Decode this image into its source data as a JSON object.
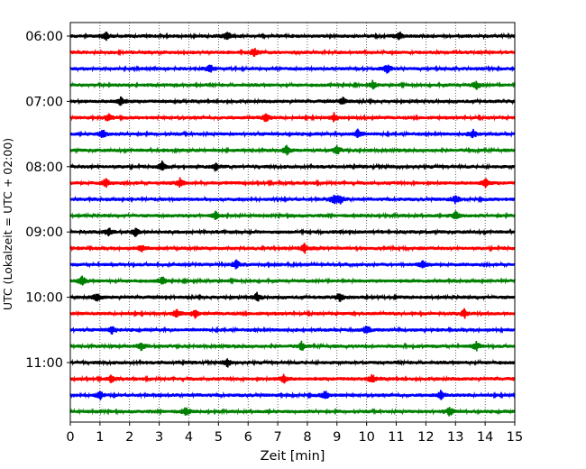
{
  "chart_data": {
    "type": "line",
    "title": "",
    "xlabel": "Zeit  [min]",
    "ylabel": "UTC (Lokalzeit = UTC + 02:00)",
    "xlim": [
      0,
      15
    ],
    "x_ticks": [
      "0",
      "1",
      "2",
      "3",
      "4",
      "5",
      "6",
      "7",
      "8",
      "9",
      "10",
      "11",
      "12",
      "13",
      "14",
      "15"
    ],
    "y_tick_labels": [
      "06:00",
      "07:00",
      "08:00",
      "09:00",
      "10:00",
      "11:00"
    ],
    "grid": "vertical dotted lines at each minute",
    "trace_interval_minutes": 15,
    "colors_cycle": [
      "#000000",
      "#ff0000",
      "#0000ff",
      "#008000"
    ],
    "traces": [
      {
        "start": "06:00",
        "color": "#000000",
        "events": [
          1.2,
          5.3,
          11.1
        ]
      },
      {
        "start": "06:15",
        "color": "#ff0000",
        "events": [
          6.2
        ]
      },
      {
        "start": "06:30",
        "color": "#0000ff",
        "events": [
          4.7,
          10.7
        ]
      },
      {
        "start": "06:45",
        "color": "#008000",
        "events": [
          10.2,
          13.7
        ]
      },
      {
        "start": "07:00",
        "color": "#000000",
        "events": [
          1.7,
          9.2
        ]
      },
      {
        "start": "07:15",
        "color": "#ff0000",
        "events": [
          1.3,
          6.6,
          8.9
        ]
      },
      {
        "start": "07:30",
        "color": "#0000ff",
        "events": [
          1.1,
          9.7,
          13.6
        ]
      },
      {
        "start": "07:45",
        "color": "#008000",
        "events": [
          7.3,
          9.0
        ]
      },
      {
        "start": "08:00",
        "color": "#000000",
        "events": [
          3.1,
          4.9
        ]
      },
      {
        "start": "08:15",
        "color": "#ff0000",
        "events": [
          1.2,
          3.7,
          14.0
        ]
      },
      {
        "start": "08:30",
        "color": "#0000ff",
        "events": [
          8.9,
          9.1,
          13.0
        ]
      },
      {
        "start": "08:45",
        "color": "#008000",
        "events": [
          4.9,
          13.0
        ]
      },
      {
        "start": "09:00",
        "color": "#000000",
        "events": [
          1.3,
          2.2
        ]
      },
      {
        "start": "09:15",
        "color": "#ff0000",
        "events": [
          2.4,
          7.9
        ]
      },
      {
        "start": "09:30",
        "color": "#0000ff",
        "events": [
          5.6,
          11.9
        ]
      },
      {
        "start": "09:45",
        "color": "#008000",
        "events": [
          0.4,
          3.1
        ]
      },
      {
        "start": "10:00",
        "color": "#000000",
        "events": [
          0.9,
          6.3,
          9.1
        ]
      },
      {
        "start": "10:15",
        "color": "#ff0000",
        "events": [
          3.6,
          4.2,
          13.3
        ]
      },
      {
        "start": "10:30",
        "color": "#0000ff",
        "events": [
          1.4,
          10.0
        ]
      },
      {
        "start": "10:45",
        "color": "#008000",
        "events": [
          2.4,
          7.8,
          13.7
        ]
      },
      {
        "start": "11:00",
        "color": "#000000",
        "events": [
          5.3
        ]
      },
      {
        "start": "11:15",
        "color": "#ff0000",
        "events": [
          1.4,
          7.2,
          10.2
        ]
      },
      {
        "start": "11:30",
        "color": "#0000ff",
        "events": [
          1.0,
          8.6,
          12.5
        ]
      },
      {
        "start": "11:45",
        "color": "#008000",
        "events": [
          3.9,
          12.8
        ]
      }
    ]
  }
}
